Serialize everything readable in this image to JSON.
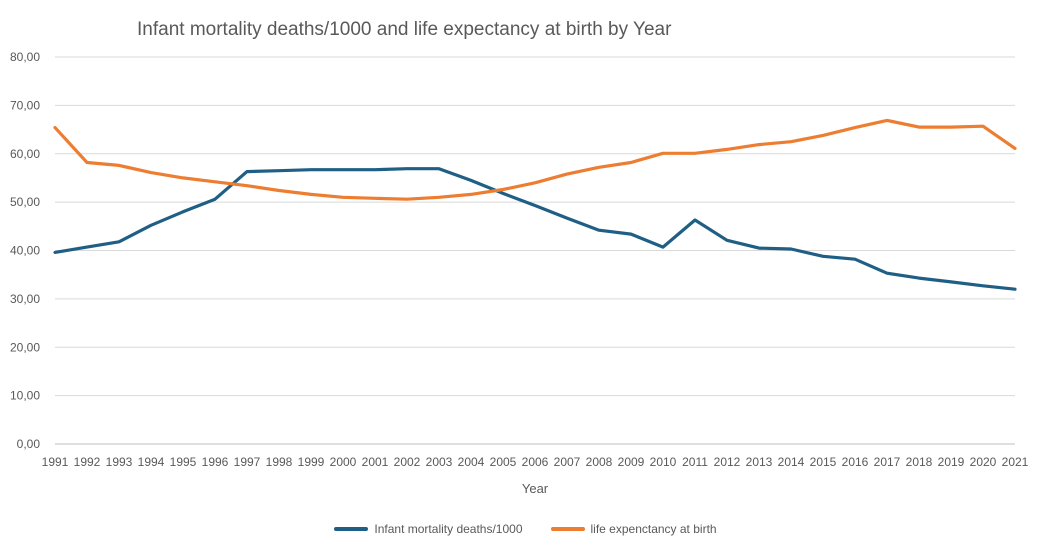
{
  "chart_data": {
    "type": "line",
    "title": "Infant mortality deaths/1000 and life expectancy at birth by Year",
    "xlabel": "Year",
    "ylabel": "",
    "ylim": [
      0,
      80
    ],
    "yticks": [
      "0,00",
      "10,00",
      "20,00",
      "30,00",
      "40,00",
      "50,00",
      "60,00",
      "70,00",
      "80,00"
    ],
    "grid": true,
    "legend_position": "bottom",
    "categories": [
      "1991",
      "1992",
      "1993",
      "1994",
      "1995",
      "1996",
      "1997",
      "1998",
      "1999",
      "2000",
      "2001",
      "2002",
      "2003",
      "2004",
      "2005",
      "2006",
      "2007",
      "2008",
      "2009",
      "2010",
      "2011",
      "2012",
      "2013",
      "2014",
      "2015",
      "2016",
      "2017",
      "2018",
      "2019",
      "2020",
      "2021"
    ],
    "series": [
      {
        "name": "Infant mortality deaths/1000",
        "color": "#1f5f85",
        "values": [
          39.6,
          40.7,
          41.8,
          45.2,
          48.0,
          50.6,
          56.3,
          56.5,
          56.7,
          56.7,
          56.7,
          56.9,
          56.9,
          54.5,
          51.8,
          49.3,
          46.7,
          44.2,
          43.4,
          40.7,
          46.3,
          42.1,
          40.5,
          40.3,
          38.8,
          38.2,
          35.3,
          34.3,
          33.5,
          32.7,
          32.0
        ]
      },
      {
        "name": "life expenctancy at birth",
        "color": "#ed7d31",
        "values": [
          65.4,
          58.2,
          57.6,
          56.1,
          55.0,
          54.2,
          53.4,
          52.4,
          51.6,
          51.0,
          50.8,
          50.6,
          51.0,
          51.6,
          52.6,
          54.0,
          55.8,
          57.2,
          58.2,
          60.1,
          60.1,
          60.9,
          61.9,
          62.5,
          63.8,
          65.4,
          66.9,
          65.5,
          65.5,
          65.7,
          61.1
        ]
      }
    ]
  }
}
